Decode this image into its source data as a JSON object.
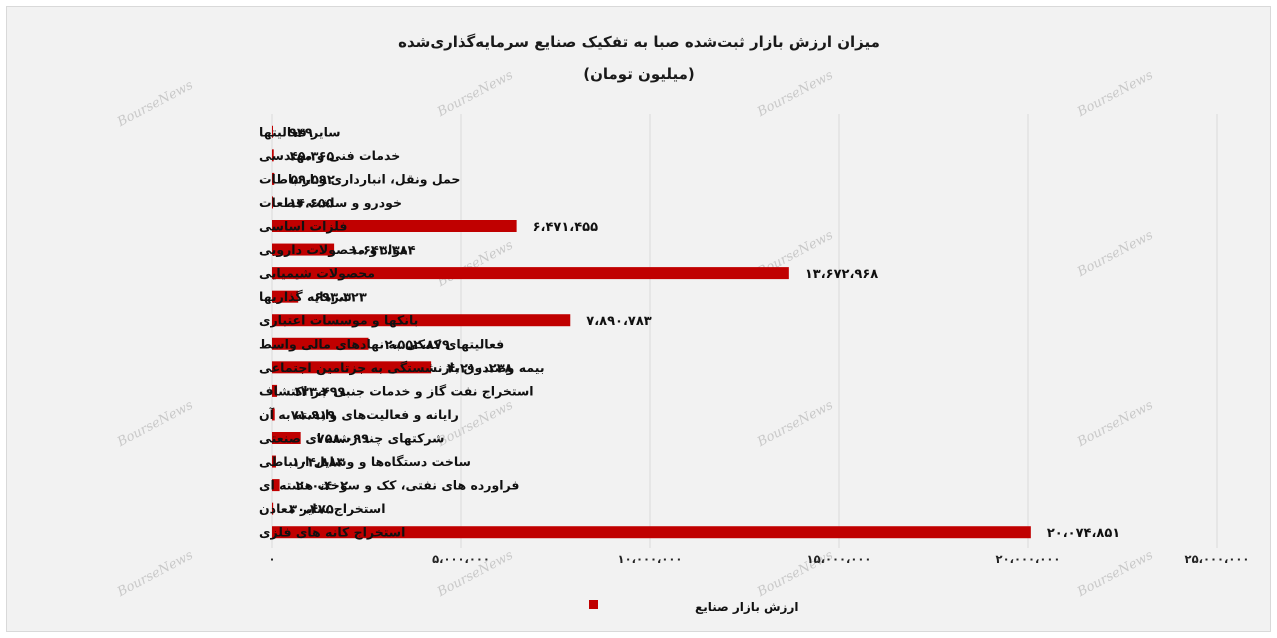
{
  "chart_data": {
    "type": "bar",
    "orientation": "horizontal",
    "title": "میزان ارزش بازار ثبت‌شده صبا به تفکیک صنایع سرمایه‌گذاری‌شده",
    "subtitle": "(میلیون تومان)",
    "categories": [
      "سایر فعالیتها",
      "خدمات فنی و مهندسی",
      "حمل ونقل، انبارداری و ارتباطات",
      "خودرو و ساخت قطعات",
      "فلزات اساسی",
      "مواد و محصولات دارویی",
      "محصولات شیمیایی",
      "سرمایه گذاریها",
      "بانکها و موسسات اعتباری",
      "فعالیتهای کمکی به نهادهای مالی واسط",
      "بیمه وصندوق بازنشستگی به جزتامین اجتماعی",
      "استخراج نفت گاز و خدمات جنبی جز اکتشاف",
      "رایانه و فعالیت‌های وابسته به آن",
      "شرکتهای چند رشته ای صنعتی",
      "ساخت دستگاه‌ها و وسایل ارتباطی",
      "فراورده های نفتی، کک و سوخت هسته ای",
      "استخراج سایر معادن",
      "استخراج کانه های فلزی"
    ],
    "series": [
      {
        "name": "ارزش بازار صنایع",
        "color": "#c00000",
        "values": [
          939,
          45365,
          59592,
          14655,
          6471455,
          1643384,
          13672968,
          693323,
          7890783,
          2552879,
          4210238,
          133499,
          71919,
          758099,
          104883,
          200402,
          30475,
          20074851
        ],
        "value_labels": [
          "۹۳۹",
          "۴۵،۳۶۵",
          "۵۹،۵۹۲",
          "۱۴،۶۵۵",
          "۶،۴۷۱،۴۵۵",
          "۱،۶۴۳،۳۸۴",
          "۱۳،۶۷۲،۹۶۸",
          "۶۹۳،۳۲۳",
          "۷،۸۹۰،۷۸۳",
          "۲،۵۵۲،۸۷۹",
          "۴،۲۱۰،۲۳۸",
          "۱۳۳،۴۹۹",
          "۷۱،۹۱۹",
          "۷۵۸،۰۹۹",
          "۱۰۴،۸۸۳",
          "۲۰۰،۴۰۲",
          "۳۰،۴۷۵",
          "۲۰،۰۷۴،۸۵۱"
        ]
      }
    ],
    "xlim": [
      0,
      25000000
    ],
    "xticks": [
      0,
      5000000,
      10000000,
      15000000,
      20000000,
      25000000
    ],
    "xtick_labels": [
      "۰",
      "۵،۰۰۰،۰۰۰",
      "۱۰،۰۰۰،۰۰۰",
      "۱۵،۰۰۰،۰۰۰",
      "۲۰،۰۰۰،۰۰۰",
      "۲۵،۰۰۰،۰۰۰"
    ],
    "grid": true,
    "legend_position": "bottom",
    "watermark_text": "BourseNews",
    "colors": {
      "background": "#f2f2f2",
      "bar": "#c00000",
      "grid": "#d9d9d9"
    }
  }
}
